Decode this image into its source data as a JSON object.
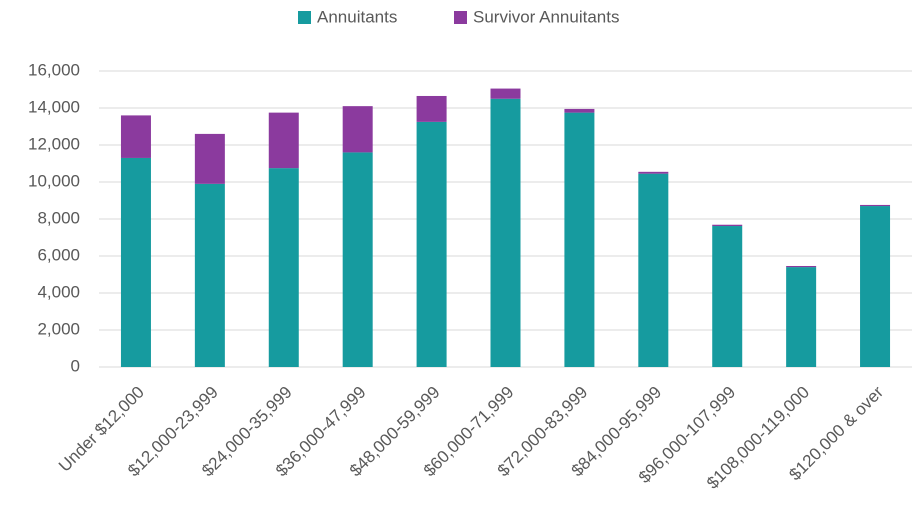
{
  "chart_data": {
    "type": "stacked_bar",
    "categories": [
      "Under $12,000",
      "$12,000-23,999",
      "$24,000-35,999",
      "$36,000-47,999",
      "$48,000-59,999",
      "$60,000-71,999",
      "$72,000-83,999",
      "$84,000-95,999",
      "$96,000-107,999",
      "$108,000-119,000",
      "$120,000 & over"
    ],
    "series": [
      {
        "name": "Annuitants",
        "color": "#169b9f",
        "values": [
          11300,
          9900,
          10750,
          11600,
          13250,
          14500,
          13750,
          10450,
          7620,
          5400,
          8700
        ]
      },
      {
        "name": "Survivor Annuitants",
        "color": "#8b3a9e",
        "values": [
          2300,
          2700,
          3000,
          2500,
          1400,
          550,
          200,
          100,
          70,
          60,
          60
        ]
      }
    ],
    "ylim": [
      0,
      16000
    ],
    "yticks": [
      0,
      {
        "value": 2000,
        "label": "2,000"
      },
      {
        "value": 4000,
        "label": "4,000"
      },
      {
        "value": 6000,
        "label": "6,000"
      },
      {
        "value": 8000,
        "label": "8,000"
      },
      {
        "value": 10000,
        "label": "10,000"
      },
      {
        "value": 12000,
        "label": "12,000"
      },
      {
        "value": 14000,
        "label": "14,000"
      },
      {
        "value": 16000,
        "label": "16,000"
      }
    ],
    "grid": true,
    "legend": "top"
  }
}
